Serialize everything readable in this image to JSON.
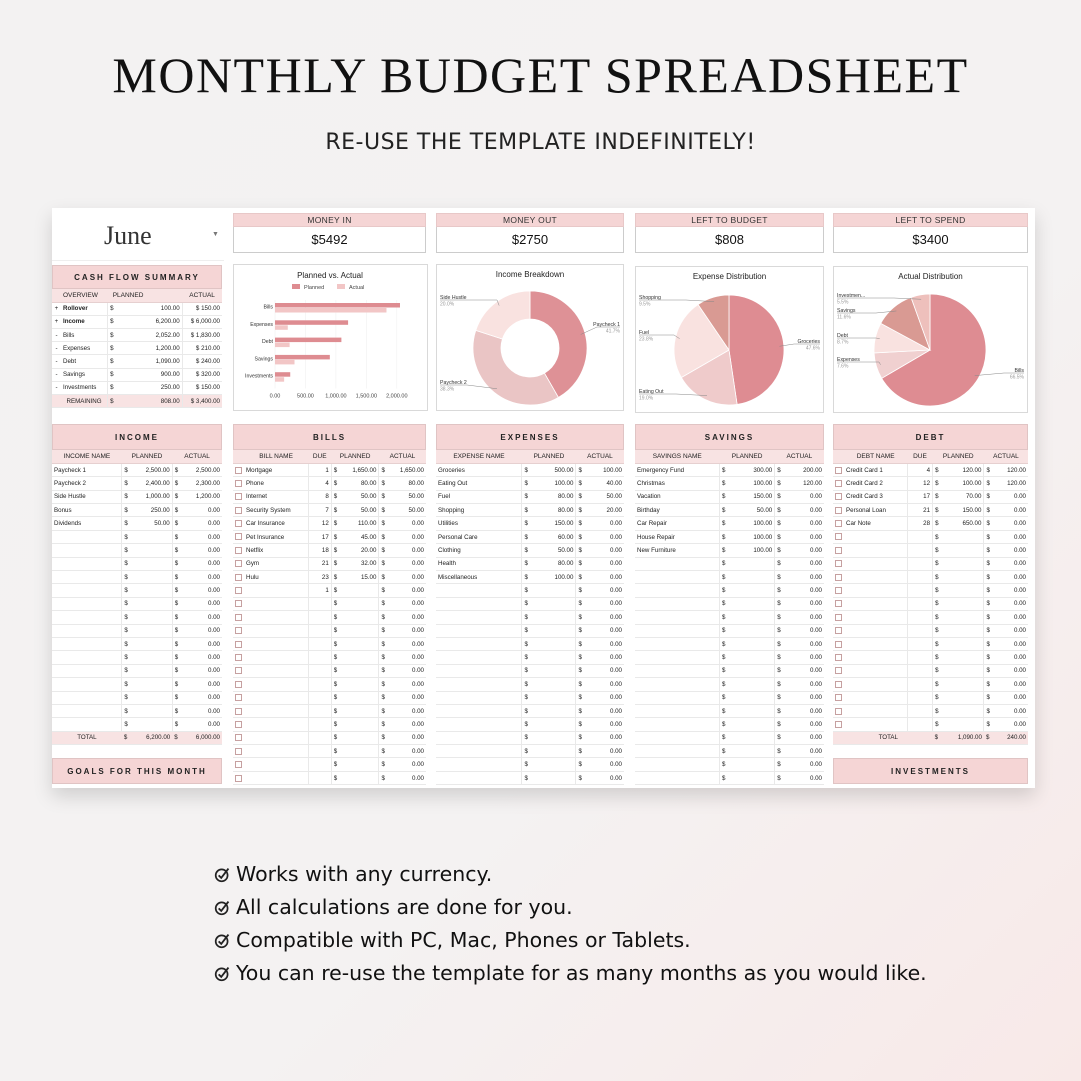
{
  "header": {
    "title": "MONTHLY BUDGET SPREADSHEET",
    "subtitle": "RE-USE THE TEMPLATE INDEFINITELY!"
  },
  "sheet": {
    "month": "June",
    "kpis": [
      {
        "label": "MONEY IN",
        "value": "$5492"
      },
      {
        "label": "MONEY OUT",
        "value": "$2750"
      },
      {
        "label": "LEFT TO BUDGET",
        "value": "$808"
      },
      {
        "label": "LEFT TO SPEND",
        "value": "$3400"
      }
    ],
    "cashflow": {
      "title": "CASH FLOW SUMMARY",
      "columns": [
        "OVERVIEW",
        "PLANNED",
        "ACTUAL"
      ],
      "rows": [
        {
          "sign": "+",
          "name": "Rollover",
          "planned": "100.00",
          "actual": "150.00",
          "bold": true
        },
        {
          "sign": "+",
          "name": "Income",
          "planned": "6,200.00",
          "actual": "6,000.00",
          "bold": true
        },
        {
          "sign": "-",
          "name": "Bills",
          "planned": "2,052.00",
          "actual": "1,830.00"
        },
        {
          "sign": "-",
          "name": "Expenses",
          "planned": "1,200.00",
          "actual": "210.00"
        },
        {
          "sign": "-",
          "name": "Debt",
          "planned": "1,090.00",
          "actual": "240.00"
        },
        {
          "sign": "-",
          "name": "Savings",
          "planned": "900.00",
          "actual": "320.00"
        },
        {
          "sign": "-",
          "name": "Investments",
          "planned": "250.00",
          "actual": "150.00"
        }
      ],
      "remaining": {
        "label": "REMAINING",
        "planned": "808.00",
        "actual": "3,400.00"
      }
    },
    "charts": [
      {
        "type": "bar",
        "title": "Planned vs. Actual",
        "legend": [
          "Planned",
          "Actual"
        ],
        "categories": [
          "Bills",
          "Expenses",
          "Debt",
          "Savings",
          "Investments"
        ],
        "series": [
          {
            "name": "Planned",
            "values": [
              2052,
              1200,
              1090,
              900,
              250
            ]
          },
          {
            "name": "Actual",
            "values": [
              1830,
              210,
              240,
              320,
              150
            ]
          }
        ],
        "ticks": [
          "0.00",
          "500.00",
          "1,000.00",
          "1,500.00",
          "2,000.00"
        ],
        "xlim": [
          0,
          2200
        ],
        "colors": [
          "#de8c91",
          "#f2c6c6"
        ]
      },
      {
        "type": "donut",
        "title": "Income Breakdown",
        "slices": [
          {
            "label": "Paycheck 1",
            "pct": "41.7%",
            "value": 41.7,
            "color": "#de9196"
          },
          {
            "label": "Paycheck 2",
            "pct": "38.3%",
            "value": 38.3,
            "color": "#eac5c5"
          },
          {
            "label": "Side Hustle",
            "pct": "20.0%",
            "value": 20.0,
            "color": "#f9e2e0"
          }
        ]
      },
      {
        "type": "pie",
        "title": "Expense Distribution",
        "slices": [
          {
            "label": "Groceries",
            "pct": "47.6%",
            "value": 47.6,
            "color": "#de8c92"
          },
          {
            "label": "Eating Out",
            "pct": "19.0%",
            "value": 19.0,
            "color": "#efcbcb"
          },
          {
            "label": "Fuel",
            "pct": "23.8%",
            "value": 23.8,
            "color": "#f9e2e0"
          },
          {
            "label": "Shopping",
            "pct": "9.5%",
            "value": 9.5,
            "color": "#d99a93"
          }
        ]
      },
      {
        "type": "pie",
        "title": "Actual Distribution",
        "slices": [
          {
            "label": "Bills",
            "pct": "66.5%",
            "value": 66.5,
            "color": "#de8c92"
          },
          {
            "label": "Expenses",
            "pct": "7.6%",
            "value": 7.6,
            "color": "#f0d0d0"
          },
          {
            "label": "Debt",
            "pct": "8.7%",
            "value": 8.7,
            "color": "#f9e2e0"
          },
          {
            "label": "Savings",
            "pct": "11.6%",
            "value": 11.6,
            "color": "#d99a93"
          },
          {
            "label": "Investmen...",
            "pct": "5.5%",
            "value": 5.5,
            "color": "#eec0bc"
          }
        ]
      }
    ],
    "income": {
      "title": "INCOME",
      "columns": [
        "INCOME NAME",
        "PLANNED",
        "ACTUAL"
      ],
      "rows": [
        {
          "name": "Paycheck 1",
          "planned": "2,500.00",
          "actual": "2,500.00"
        },
        {
          "name": "Paycheck 2",
          "planned": "2,400.00",
          "actual": "2,300.00"
        },
        {
          "name": "Side Hustle",
          "planned": "1,000.00",
          "actual": "1,200.00"
        },
        {
          "name": "Bonus",
          "planned": "250.00",
          "actual": "0.00"
        },
        {
          "name": "Dividends",
          "planned": "50.00",
          "actual": "0.00"
        }
      ],
      "empty_rows": 15,
      "zero": "0.00",
      "cur": "$",
      "total": {
        "label": "TOTAL",
        "planned": "6,200.00",
        "actual": "6,000.00"
      }
    },
    "bills": {
      "title": "BILLS",
      "columns": [
        "BILL NAME",
        "DUE",
        "PLANNED",
        "ACTUAL"
      ],
      "rows": [
        {
          "name": "Mortgage",
          "due": "1",
          "planned": "1,650.00",
          "actual": "1,650.00"
        },
        {
          "name": "Phone",
          "due": "4",
          "planned": "80.00",
          "actual": "80.00"
        },
        {
          "name": "Internet",
          "due": "8",
          "planned": "50.00",
          "actual": "50.00"
        },
        {
          "name": "Security System",
          "due": "7",
          "planned": "50.00",
          "actual": "50.00"
        },
        {
          "name": "Car Insurance",
          "due": "12",
          "planned": "110.00",
          "actual": "0.00"
        },
        {
          "name": "Pet Insurance",
          "due": "17",
          "planned": "45.00",
          "actual": "0.00"
        },
        {
          "name": "Netflix",
          "due": "18",
          "planned": "20.00",
          "actual": "0.00"
        },
        {
          "name": "Gym",
          "due": "21",
          "planned": "32.00",
          "actual": "0.00"
        },
        {
          "name": "Hulu",
          "due": "23",
          "planned": "15.00",
          "actual": "0.00"
        },
        {
          "name": "",
          "due": "1",
          "planned": "",
          "actual": "0.00"
        }
      ],
      "empty_rows": 14,
      "zero": "0.00",
      "cur": "$"
    },
    "expenses": {
      "title": "EXPENSES",
      "columns": [
        "EXPENSE NAME",
        "PLANNED",
        "ACTUAL"
      ],
      "rows": [
        {
          "name": "Groceries",
          "planned": "500.00",
          "actual": "100.00"
        },
        {
          "name": "Eating Out",
          "planned": "100.00",
          "actual": "40.00"
        },
        {
          "name": "Fuel",
          "planned": "80.00",
          "actual": "50.00"
        },
        {
          "name": "Shopping",
          "planned": "80.00",
          "actual": "20.00"
        },
        {
          "name": "Utilities",
          "planned": "150.00",
          "actual": "0.00"
        },
        {
          "name": "Personal Care",
          "planned": "60.00",
          "actual": "0.00"
        },
        {
          "name": "Clothing",
          "planned": "50.00",
          "actual": "0.00"
        },
        {
          "name": "Health",
          "planned": "80.00",
          "actual": "0.00"
        },
        {
          "name": "Miscellaneous",
          "planned": "100.00",
          "actual": "0.00"
        }
      ],
      "empty_rows": 15,
      "zero": "0.00",
      "cur": "$"
    },
    "savings": {
      "title": "SAVINGS",
      "columns": [
        "SAVINGS NAME",
        "PLANNED",
        "ACTUAL"
      ],
      "rows": [
        {
          "name": "Emergency Fund",
          "planned": "300.00",
          "actual": "200.00"
        },
        {
          "name": "Christmas",
          "planned": "100.00",
          "actual": "120.00"
        },
        {
          "name": "Vacation",
          "planned": "150.00",
          "actual": "0.00"
        },
        {
          "name": "Birthday",
          "planned": "50.00",
          "actual": "0.00"
        },
        {
          "name": "Car Repair",
          "planned": "100.00",
          "actual": "0.00"
        },
        {
          "name": "House Repair",
          "planned": "100.00",
          "actual": "0.00"
        },
        {
          "name": "New Furniture",
          "planned": "100.00",
          "actual": "0.00"
        }
      ],
      "empty_rows": 17,
      "zero": "0.00",
      "cur": "$"
    },
    "debt": {
      "title": "DEBT",
      "columns": [
        "DEBT NAME",
        "DUE",
        "PLANNED",
        "ACTUAL"
      ],
      "rows": [
        {
          "name": "Credit Card 1",
          "due": "4",
          "planned": "120.00",
          "actual": "120.00"
        },
        {
          "name": "Credit Card 2",
          "due": "12",
          "planned": "100.00",
          "actual": "120.00"
        },
        {
          "name": "Credit Card 3",
          "due": "17",
          "planned": "70.00",
          "actual": "0.00"
        },
        {
          "name": "Personal Loan",
          "due": "21",
          "planned": "150.00",
          "actual": "0.00"
        },
        {
          "name": "Car Note",
          "due": "28",
          "planned": "650.00",
          "actual": "0.00"
        }
      ],
      "empty_rows": 15,
      "zero": "0.00",
      "cur": "$",
      "total": {
        "label": "TOTAL",
        "planned": "1,090.00",
        "actual": "240.00"
      }
    },
    "goals_title": "GOALS FOR THIS MONTH",
    "investments_title": "INVESTMENTS"
  },
  "features": [
    "Works with any currency.",
    "All calculations are done for you.",
    "Compatible with PC, Mac, Phones or Tablets.",
    "You can re-use the template for as many months as you would like."
  ]
}
